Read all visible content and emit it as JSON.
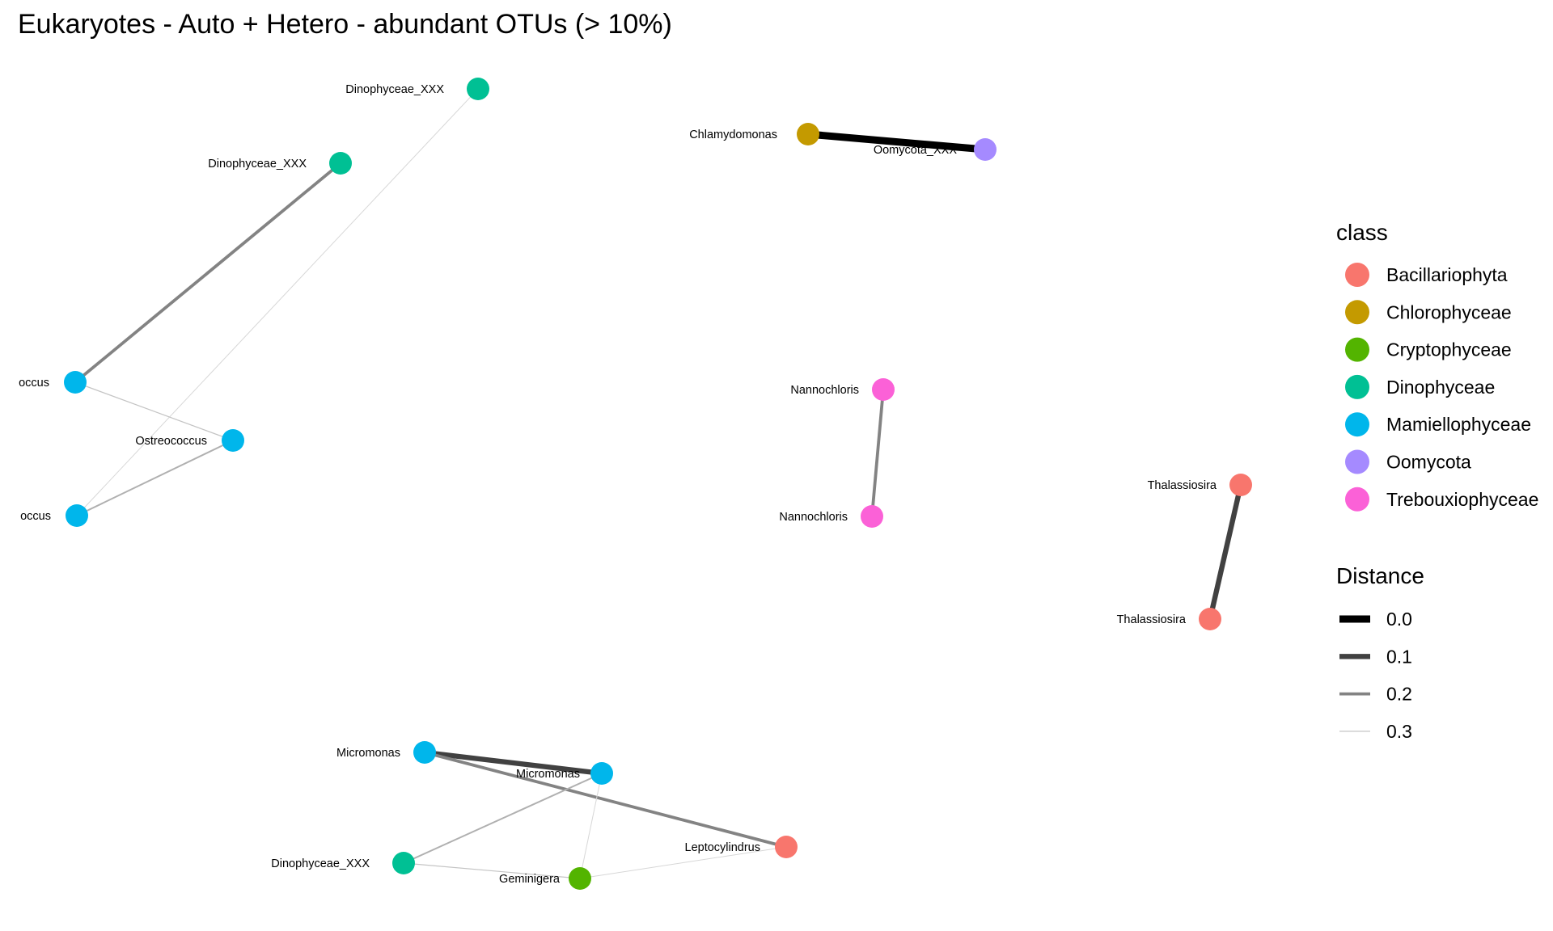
{
  "title": "Eukaryotes - Auto + Hetero - abundant OTUs (> 10%)",
  "colors": {
    "Bacillariophyta": "#F8766D",
    "Chlorophyceae": "#C49A00",
    "Cryptophyceae": "#53B400",
    "Dinophyceae": "#00C094",
    "Mamiellophyceae": "#00B6EB",
    "Oomycota": "#A58AFF",
    "Trebouxiophyceae": "#FB61D7"
  },
  "nodes": [
    {
      "id": "n1",
      "label": "Dinophyceae_XXX",
      "class": "Dinophyceae"
    },
    {
      "id": "n2",
      "label": "Dinophyceae_XXX",
      "class": "Dinophyceae"
    },
    {
      "id": "n3",
      "label": "occus",
      "class": "Mamiellophyceae"
    },
    {
      "id": "n4",
      "label": "Ostreococcus",
      "class": "Mamiellophyceae"
    },
    {
      "id": "n5",
      "label": "occus",
      "class": "Mamiellophyceae"
    },
    {
      "id": "n6",
      "label": "Chlamydomonas",
      "class": "Chlorophyceae"
    },
    {
      "id": "n7",
      "label": "Oomycota_XXX",
      "class": "Oomycota"
    },
    {
      "id": "n8",
      "label": "Nannochloris",
      "class": "Trebouxiophyceae"
    },
    {
      "id": "n9",
      "label": "Nannochloris",
      "class": "Trebouxiophyceae"
    },
    {
      "id": "n10",
      "label": "Thalassiosira",
      "class": "Bacillariophyta"
    },
    {
      "id": "n11",
      "label": "Thalassiosira",
      "class": "Bacillariophyta"
    },
    {
      "id": "n12",
      "label": "Micromonas",
      "class": "Mamiellophyceae"
    },
    {
      "id": "n13",
      "label": "Micromonas",
      "class": "Mamiellophyceae"
    },
    {
      "id": "n14",
      "label": "Leptocylindrus",
      "class": "Bacillariophyta"
    },
    {
      "id": "n15",
      "label": "Dinophyceae_XXX",
      "class": "Dinophyceae"
    },
    {
      "id": "n16",
      "label": "Geminigera",
      "class": "Cryptophyceae"
    }
  ],
  "edges": [
    {
      "source": "n2",
      "target": "n3",
      "distance": 0.2
    },
    {
      "source": "n1",
      "target": "n5",
      "distance": 0.33
    },
    {
      "source": "n3",
      "target": "n4",
      "distance": 0.3
    },
    {
      "source": "n4",
      "target": "n5",
      "distance": 0.27
    },
    {
      "source": "n6",
      "target": "n7",
      "distance": 0.0
    },
    {
      "source": "n8",
      "target": "n9",
      "distance": 0.2
    },
    {
      "source": "n10",
      "target": "n11",
      "distance": 0.1
    },
    {
      "source": "n12",
      "target": "n13",
      "distance": 0.1
    },
    {
      "source": "n12",
      "target": "n14",
      "distance": 0.2
    },
    {
      "source": "n13",
      "target": "n15",
      "distance": 0.27
    },
    {
      "source": "n13",
      "target": "n16",
      "distance": 0.33
    },
    {
      "source": "n15",
      "target": "n16",
      "distance": 0.3
    },
    {
      "source": "n16",
      "target": "n14",
      "distance": 0.33
    }
  ],
  "legend": {
    "class_title": "class",
    "class_items": [
      "Bacillariophyta",
      "Chlorophyceae",
      "Cryptophyceae",
      "Dinophyceae",
      "Mamiellophyceae",
      "Oomycota",
      "Trebouxiophyceae"
    ],
    "distance_title": "Distance",
    "distance_items": [
      {
        "label": "0.0",
        "value": 0.0
      },
      {
        "label": "0.1",
        "value": 0.1
      },
      {
        "label": "0.2",
        "value": 0.2
      },
      {
        "label": "0.3",
        "value": 0.3
      }
    ]
  }
}
